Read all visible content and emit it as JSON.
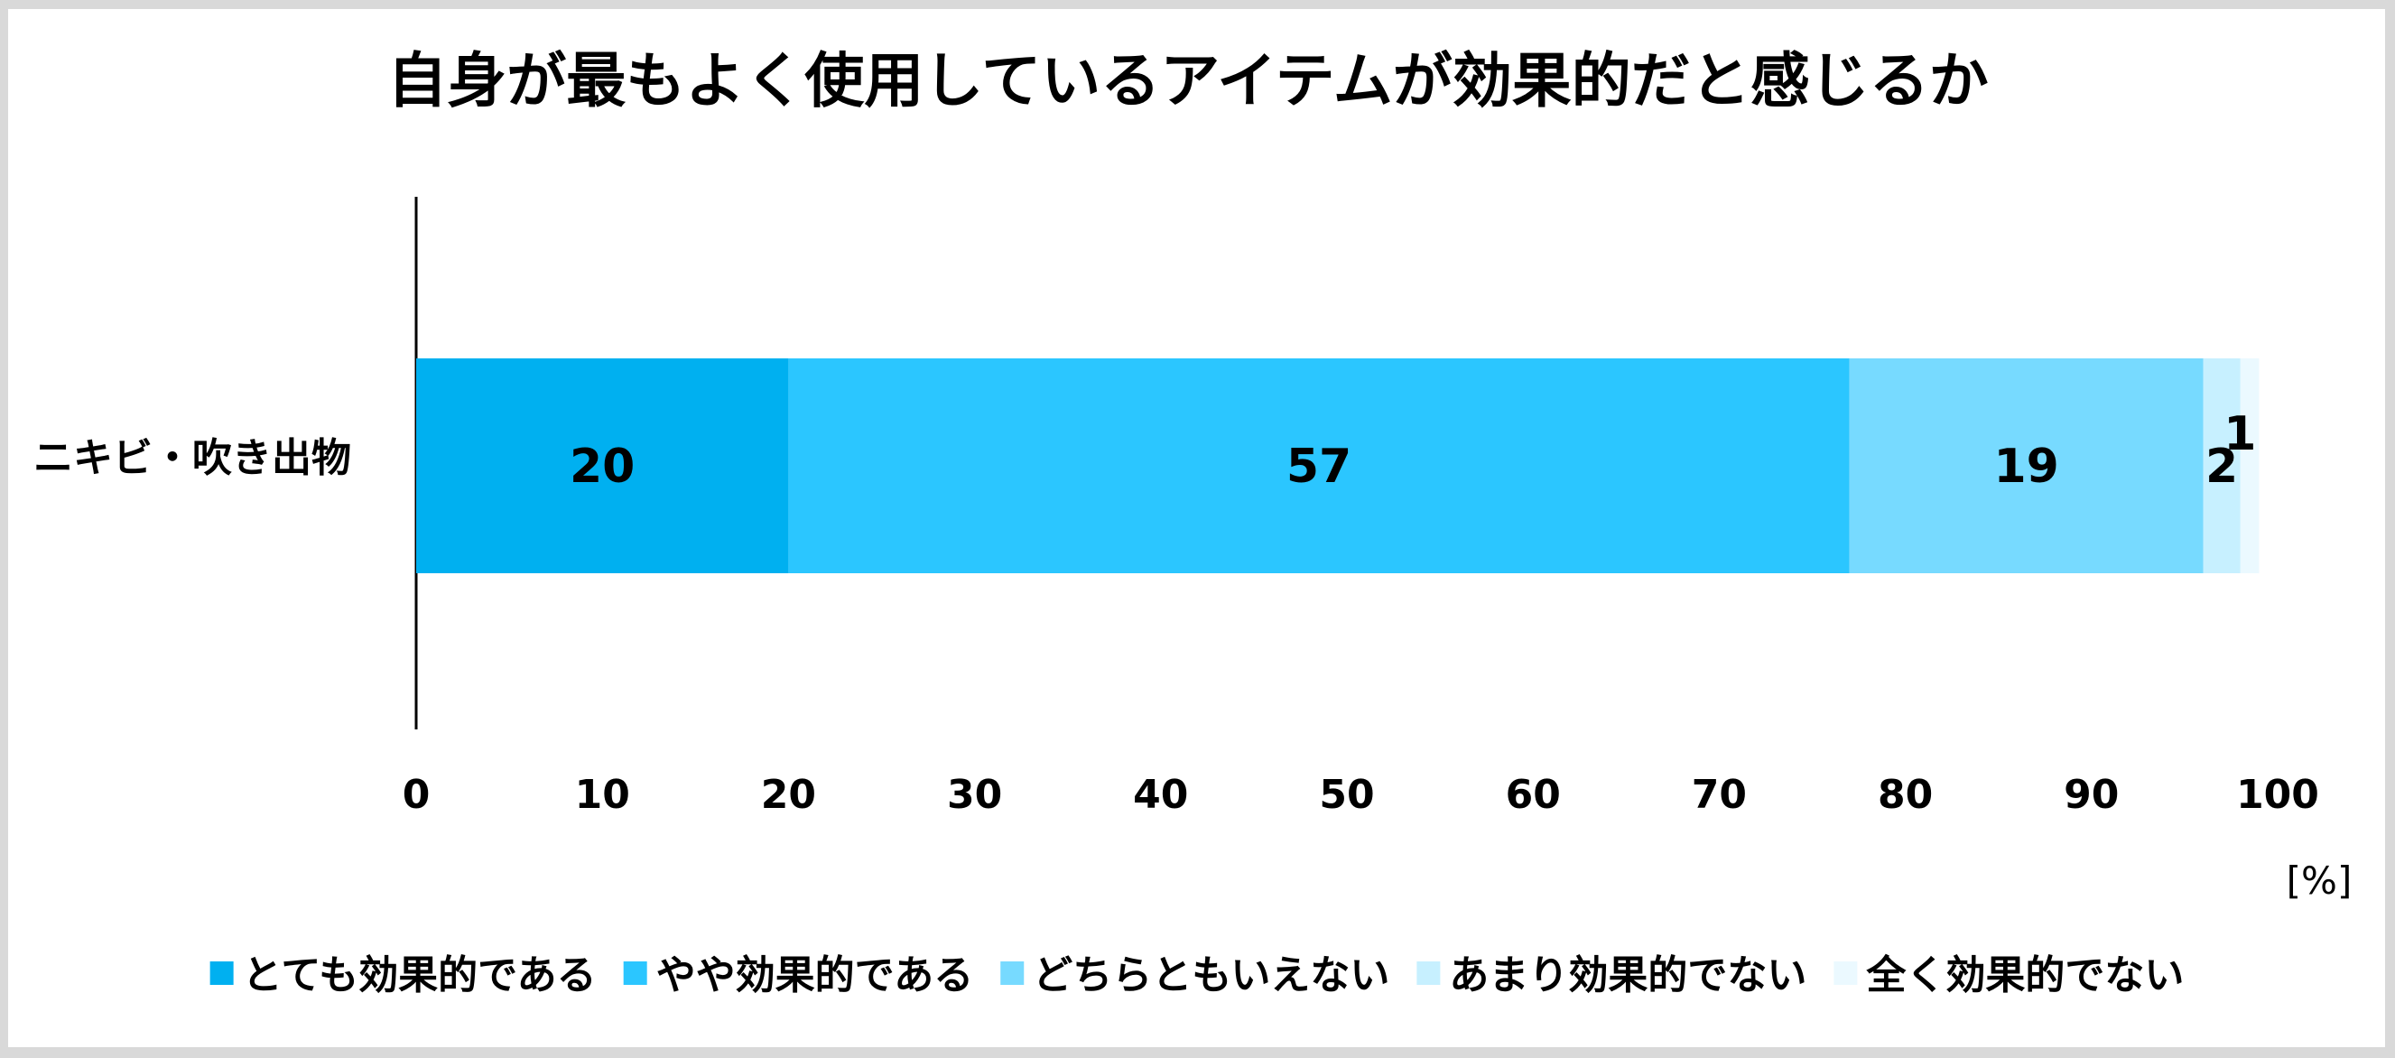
{
  "chart_data": {
    "type": "bar",
    "orientation": "horizontal",
    "stacked": true,
    "title": "自身が最もよく使用しているアイテムが効果的だと感じるか",
    "categories": [
      "ニキビ・吹き出物"
    ],
    "series": [
      {
        "name": "とても効果的である",
        "values": [
          20
        ],
        "color": "#00b0f0"
      },
      {
        "name": "やや効果的である",
        "values": [
          57
        ],
        "color": "#2bc6ff"
      },
      {
        "name": "どちらともいえない",
        "values": [
          19
        ],
        "color": "#77daff"
      },
      {
        "name": "あまり効果的でない",
        "values": [
          2
        ],
        "color": "#c7f0ff"
      },
      {
        "name": "全く効果的でない",
        "values": [
          1
        ],
        "color": "#ebf9ff"
      }
    ],
    "xlim": [
      0,
      100
    ],
    "xticks": [
      "0",
      "10",
      "20",
      "30",
      "40",
      "50",
      "60",
      "70",
      "80",
      "90",
      "100"
    ],
    "x_unit": "[%]",
    "grid": false,
    "legend_position": "bottom"
  }
}
